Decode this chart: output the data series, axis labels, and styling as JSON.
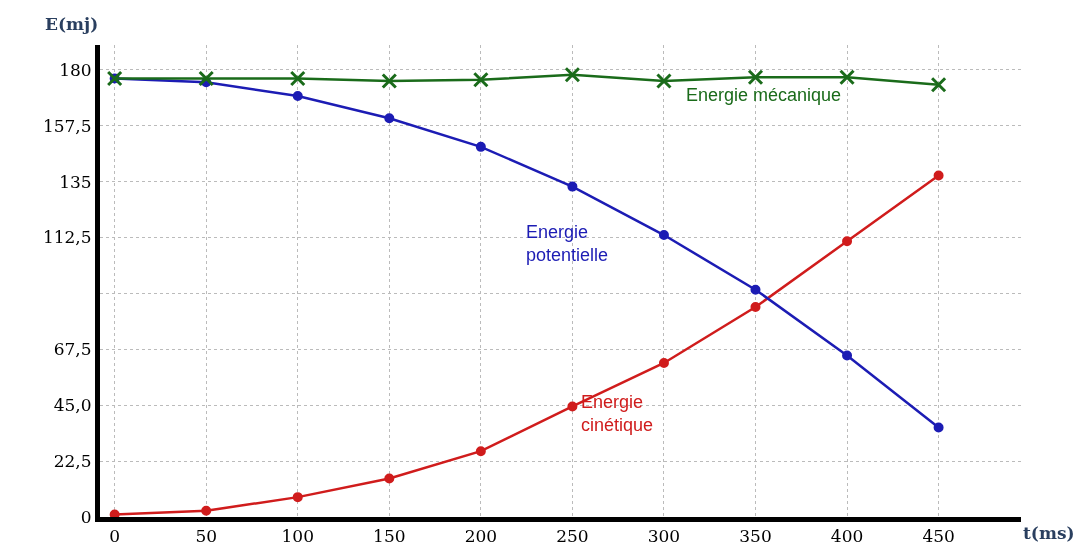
{
  "chart_data": {
    "type": "line",
    "xlabel": "t(ms)",
    "ylabel": "E(mj)",
    "x": [
      0,
      50,
      100,
      150,
      200,
      250,
      300,
      350,
      400,
      450
    ],
    "series": [
      {
        "name": "Energie mécanique",
        "color": "#1a6b1a",
        "marker": "cross",
        "values": [
          176.5,
          176.5,
          176.5,
          175.5,
          176,
          178,
          175.5,
          177,
          177,
          174
        ]
      },
      {
        "name": "Energie potentielle",
        "color": "#1c1cb4",
        "marker": "circle",
        "values": [
          176.5,
          175,
          169.5,
          160.5,
          149,
          133,
          113.5,
          91.5,
          65,
          36
        ]
      },
      {
        "name": "Energie cinétique",
        "color": "#d01c1c",
        "marker": "circle",
        "values": [
          1,
          2.5,
          8,
          15.5,
          26.5,
          44.5,
          62,
          84.5,
          111,
          137.5
        ]
      }
    ],
    "xlim": [
      -8,
      495
    ],
    "ylim": [
      0,
      190
    ],
    "xticks": [
      0,
      50,
      100,
      150,
      200,
      250,
      300,
      350,
      400,
      450
    ],
    "yticks": [
      0,
      {
        "value": 22.5,
        "label": "22,5"
      },
      {
        "value": 45,
        "label": "45,0"
      },
      {
        "value": 67.5,
        "label": "67,5"
      },
      {
        "value": 90,
        "label": null
      },
      {
        "value": 112.5,
        "label": "112,5"
      },
      135,
      {
        "value": 157.5,
        "label": "157,5"
      },
      180
    ],
    "grid": true,
    "line_style": "solid",
    "legend": false
  }
}
